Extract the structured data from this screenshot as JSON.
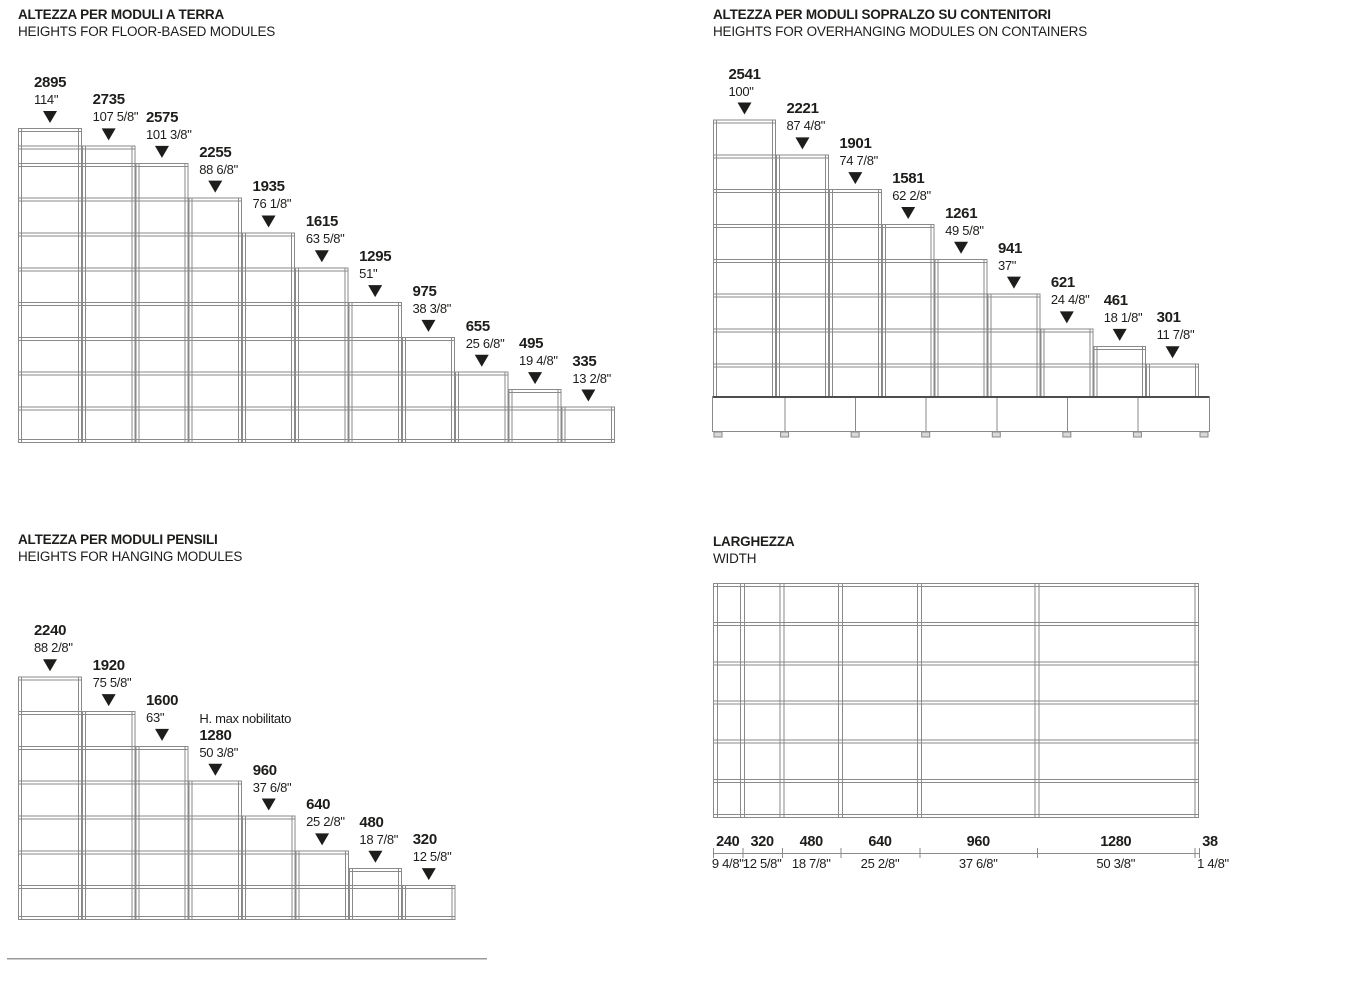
{
  "colors": {
    "ink": "#1d1d1b",
    "line": "#8a8a8a",
    "line_dark": "#4d4d4d",
    "foot_fill": "#d9d9d9"
  },
  "panels": {
    "floor": {
      "title_it": "ALTEZZA PER MODULI A TERRA",
      "title_en": "HEIGHTS FOR FLOOR-BASED MODULES",
      "modules": [
        {
          "mm": 2895,
          "inches": "114\""
        },
        {
          "mm": 2735,
          "inches": "107 5/8\""
        },
        {
          "mm": 2575,
          "inches": "101 3/8\""
        },
        {
          "mm": 2255,
          "inches": "88 6/8\""
        },
        {
          "mm": 1935,
          "inches": "76 1/8\""
        },
        {
          "mm": 1615,
          "inches": "63 5/8\""
        },
        {
          "mm": 1295,
          "inches": "51\""
        },
        {
          "mm": 975,
          "inches": "38 3/8\""
        },
        {
          "mm": 655,
          "inches": "25 6/8\""
        },
        {
          "mm": 495,
          "inches": "19 4/8\""
        },
        {
          "mm": 335,
          "inches": "13 2/8\""
        }
      ],
      "shelf_levels_mm": [
        335,
        655,
        975,
        1295,
        1615,
        1935,
        2255,
        2575,
        2735
      ]
    },
    "overhang": {
      "title_it": "ALTEZZA PER MODULI SOPRALZO SU CONTENITORI",
      "title_en": "HEIGHTS FOR OVERHANGING MODULES ON CONTAINERS",
      "modules": [
        {
          "mm": 2541,
          "inches": "100\""
        },
        {
          "mm": 2221,
          "inches": "87 4/8\""
        },
        {
          "mm": 1901,
          "inches": "74 7/8\""
        },
        {
          "mm": 1581,
          "inches": "62 2/8\""
        },
        {
          "mm": 1261,
          "inches": "49 5/8\""
        },
        {
          "mm": 941,
          "inches": "37\""
        },
        {
          "mm": 621,
          "inches": "24 4/8\""
        },
        {
          "mm": 461,
          "inches": "18 1/8\""
        },
        {
          "mm": 301,
          "inches": "11 7/8\""
        }
      ],
      "shelf_levels_mm": [
        301,
        621,
        941,
        1261,
        1581,
        1901,
        2221
      ],
      "base_compartments": 7
    },
    "hanging": {
      "title_it": "ALTEZZA PER MODULI PENSILI",
      "title_en": "HEIGHTS FOR HANGING MODULES",
      "modules": [
        {
          "mm": 2240,
          "inches": "88 2/8\""
        },
        {
          "mm": 1920,
          "inches": "75 5/8\""
        },
        {
          "mm": 1600,
          "inches": "63\""
        },
        {
          "mm": 1280,
          "inches": "50 3/8\"",
          "note": "H. max nobilitato"
        },
        {
          "mm": 960,
          "inches": "37 6/8\""
        },
        {
          "mm": 640,
          "inches": "25 2/8\""
        },
        {
          "mm": 480,
          "inches": "18 7/8\""
        },
        {
          "mm": 320,
          "inches": "12 5/8\""
        }
      ],
      "shelf_levels_mm": [
        320,
        640,
        960,
        1280,
        1600,
        1920
      ]
    },
    "width": {
      "title_it": "LARGHEZZA",
      "title_en": "WIDTH",
      "columns": [
        {
          "mm": 240,
          "inches": "9 4/8\""
        },
        {
          "mm": 320,
          "inches": "12 5/8\""
        },
        {
          "mm": 480,
          "inches": "18 7/8\""
        },
        {
          "mm": 640,
          "inches": "25 2/8\""
        },
        {
          "mm": 960,
          "inches": "37 6/8\""
        },
        {
          "mm": 1280,
          "inches": "50 3/8\""
        }
      ],
      "end_panel": {
        "mm": 38,
        "inches": "1 4/8\""
      },
      "shelf_rows": 6
    }
  }
}
